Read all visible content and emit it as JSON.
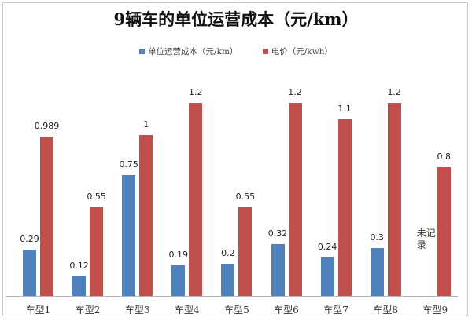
{
  "chart_data": {
    "type": "bar",
    "title": "9辆车的单位运营成本（元/km）",
    "xlabel": "",
    "ylabel": "",
    "ylim": [
      0,
      1.2
    ],
    "grid": false,
    "legend_position": "top",
    "categories": [
      "车型1",
      "车型2",
      "车型3",
      "车型4",
      "车型5",
      "车型6",
      "车型7",
      "车型8",
      "车型9"
    ],
    "series": [
      {
        "name": "单位运营成本（元/km）",
        "color": "#4f81bd",
        "values": [
          0.29,
          0.12,
          0.75,
          0.19,
          0.2,
          0.32,
          0.24,
          0.3,
          null
        ],
        "labels": [
          "0.29",
          "0.12",
          "0.75",
          "0.19",
          "0.2",
          "0.32",
          "0.24",
          "0.3",
          ""
        ]
      },
      {
        "name": "电价（元/kwh）",
        "color": "#c0504d",
        "values": [
          0.989,
          0.55,
          1,
          1.2,
          0.55,
          1.2,
          1.1,
          1.2,
          0.8
        ],
        "labels": [
          "0.989",
          "0.55",
          "1",
          "1.2",
          "0.55",
          "1.2",
          "1.1",
          "1.2",
          "0.8"
        ]
      }
    ],
    "annotations": [
      {
        "category": "车型9",
        "text_line1": "未记",
        "text_line2": "录"
      }
    ]
  }
}
